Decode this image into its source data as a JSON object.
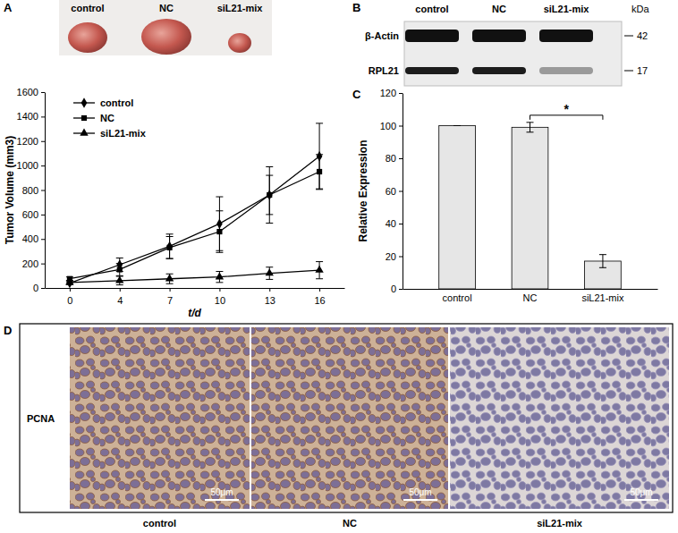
{
  "chart_data": [
    {
      "type": "line",
      "x_label": "t/d",
      "y_label": "Tumor Volume (mm3)",
      "categories": [
        "0",
        "4",
        "7",
        "10",
        "13",
        "16"
      ],
      "ylim": [
        0,
        1600
      ],
      "yticks": [
        0,
        200,
        400,
        600,
        800,
        1000,
        1200,
        1400,
        1600
      ],
      "legend": "top-left",
      "series": [
        {
          "name": "control",
          "color": "#000000",
          "marker": "diamond",
          "line_style": "solid",
          "values": [
            40,
            190,
            340,
            525,
            760,
            1075
          ],
          "errors": [
            10,
            55,
            100,
            220,
            230,
            270
          ]
        },
        {
          "name": "NC",
          "color": "#000000",
          "marker": "square",
          "line_style": "solid",
          "values": [
            75,
            150,
            330,
            460,
            760,
            950
          ],
          "errors": [
            15,
            50,
            90,
            170,
            160,
            140
          ]
        },
        {
          "name": "siL21-mix",
          "color": "#000000",
          "marker": "triangle",
          "line_style": "solid",
          "values": [
            45,
            60,
            75,
            90,
            120,
            145
          ],
          "errors": [
            15,
            35,
            40,
            45,
            50,
            70
          ]
        }
      ]
    },
    {
      "type": "bar",
      "y_label": "Relative Expression",
      "categories": [
        "control",
        "NC",
        "siL21-mix"
      ],
      "values": [
        100,
        99,
        17
      ],
      "errors": [
        0,
        3,
        4
      ],
      "color": "#e6e6e6",
      "ylim": [
        0,
        120
      ],
      "yticks": [
        0,
        20,
        40,
        60,
        80,
        100,
        120
      ],
      "annotations": [
        {
          "text": "*",
          "from": "NC",
          "to": "siL21-mix"
        }
      ]
    }
  ],
  "figure": {
    "panel_labels": [
      "A",
      "B",
      "C",
      "D"
    ],
    "tumor_photo": {
      "labels": [
        "control",
        "NC",
        "siL21-mix"
      ]
    },
    "western_blot": {
      "lanes": [
        "control",
        "NC",
        "siL21-mix"
      ],
      "bands": [
        "β-Actin",
        "RPL21"
      ],
      "unit": "kDa",
      "sizes": [
        42,
        17
      ]
    },
    "ihc": {
      "stain": "PCNA",
      "columns": [
        "control",
        "NC",
        "siL21-mix"
      ],
      "scale_bar": "50μm"
    }
  }
}
